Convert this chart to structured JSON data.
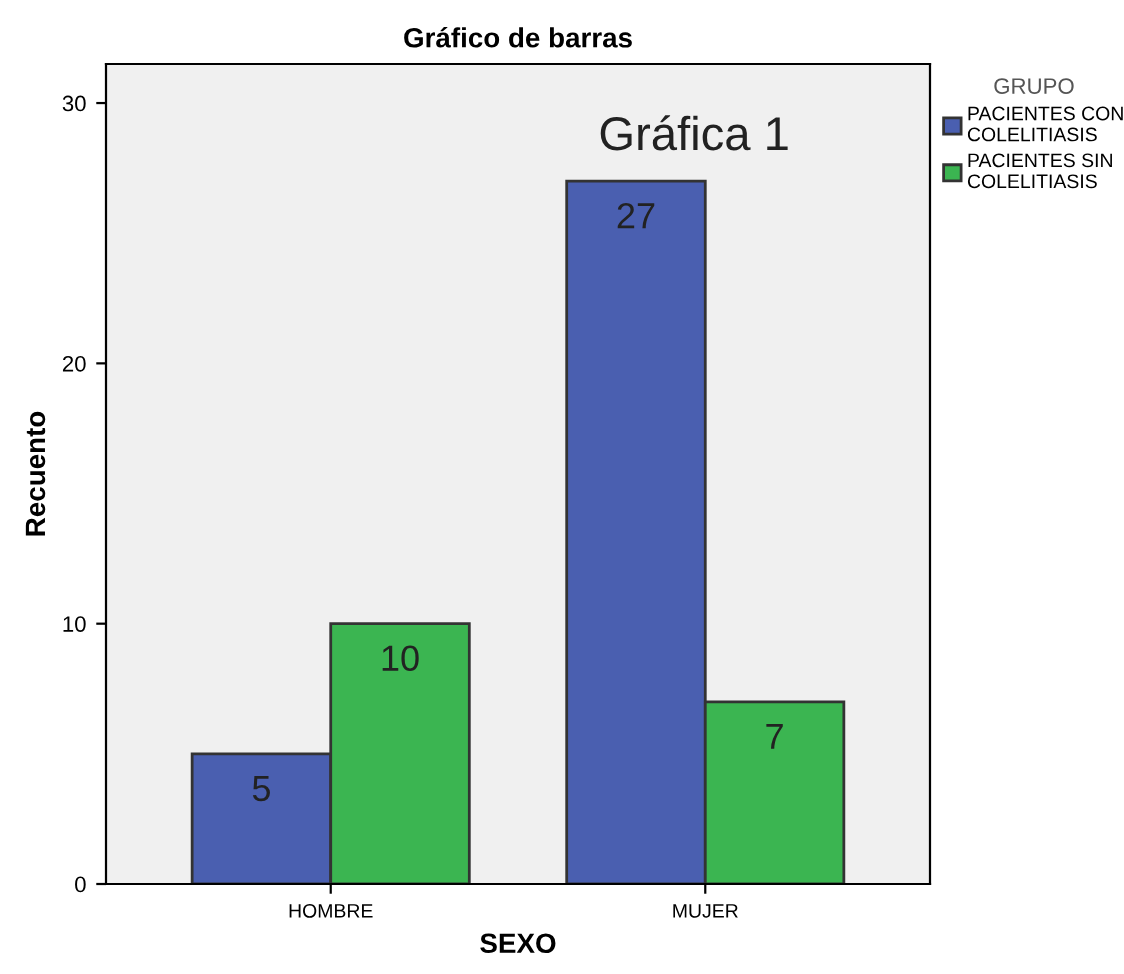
{
  "chart_data": {
    "type": "bar",
    "title": "Gráfico de barras",
    "xlabel": "SEXO",
    "ylabel": "Recuento",
    "legend_title": "GRUPO",
    "categories": [
      "HOMBRE",
      "MUJER"
    ],
    "series": [
      {
        "name": "PACIENTES CON\nCOLELITIASIS",
        "color": "#4a5fb0",
        "values": [
          5,
          27
        ]
      },
      {
        "name": "PACIENTES SIN\nCOLELITIASIS",
        "color": "#3bb551",
        "values": [
          10,
          7
        ]
      }
    ],
    "ylim": [
      0,
      31.5
    ],
    "yticks": [
      0,
      10,
      20,
      30
    ],
    "data_labels": true,
    "legend": "right",
    "grid": false,
    "annotations": [
      "Gráfica 1"
    ]
  }
}
